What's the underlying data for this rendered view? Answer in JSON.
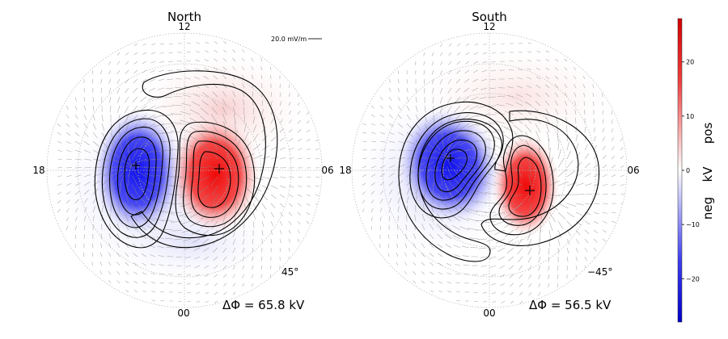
{
  "chart_data": [
    {
      "type": "polar-contour",
      "title": "North",
      "clock_labels": {
        "top": "12",
        "right": "06",
        "bottom": "00",
        "left": "18"
      },
      "latitude_label": "45°",
      "latitude_circles_deg": [
        80,
        70,
        60,
        50
      ],
      "delta_phi_label": "ΔΦ = 65.8 kV",
      "delta_phi_kV": 65.8,
      "scale_arrow_label": "20.0 mV/m",
      "extrema": [
        {
          "sign": "neg",
          "mlt": 18.2,
          "colat_deg": 15
        },
        {
          "sign": "pos",
          "mlt": 5.8,
          "colat_deg": 14
        }
      ]
    },
    {
      "type": "polar-contour",
      "title": "South",
      "clock_labels": {
        "top": "12",
        "right": "06",
        "bottom": "00",
        "left": "18"
      },
      "latitude_label": "−45°",
      "latitude_circles_deg": [
        -80,
        -70,
        -60,
        -50
      ],
      "delta_phi_label": "ΔΦ = 56.5 kV",
      "delta_phi_kV": 56.5,
      "extrema": [
        {
          "sign": "neg",
          "mlt": 17.2,
          "colat_deg": 17
        },
        {
          "sign": "pos",
          "mlt": 5.0,
          "colat_deg": 18
        }
      ]
    }
  ],
  "colorbar": {
    "ticks": [
      20,
      10,
      0,
      -10,
      -20
    ],
    "tick_labels": [
      "20",
      "10",
      "0",
      "−10",
      "−20"
    ],
    "range": [
      -28,
      28
    ],
    "unit_label": "kV",
    "pos_label": "pos",
    "neg_label": "neg",
    "colors": {
      "neg": "#0000ff",
      "zero": "#ffffff",
      "pos": "#ff0000"
    }
  }
}
